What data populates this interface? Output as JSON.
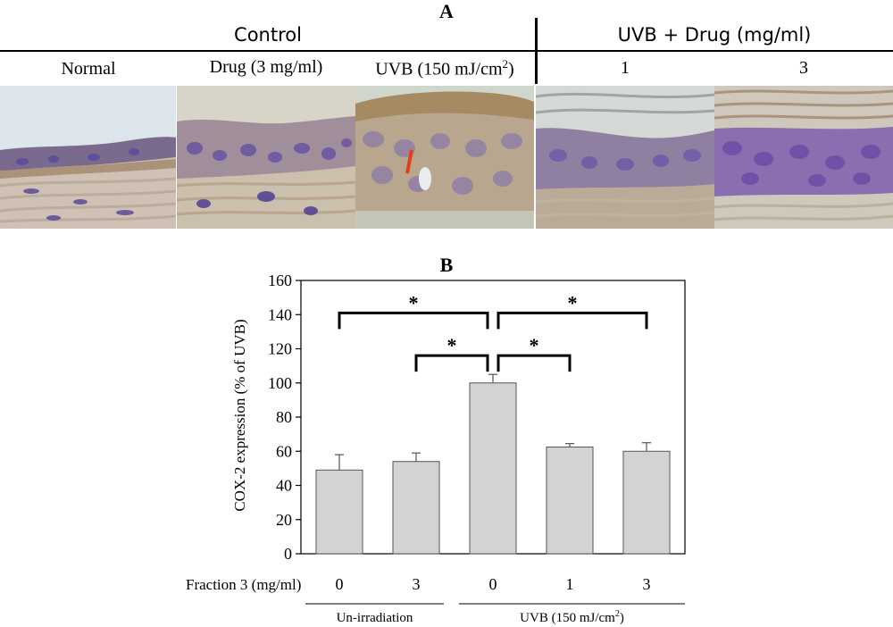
{
  "panel_a": {
    "label": "A",
    "groups": [
      {
        "label": "Control"
      },
      {
        "label": "UVB + Drug (mg/ml)"
      }
    ],
    "conditions": [
      {
        "label": "Normal"
      },
      {
        "label": "Drug (3 mg/ml)"
      },
      {
        "label_main": "UVB (150 mJ/cm",
        "label_sup": "2",
        "label_end": ")"
      },
      {
        "label": "1"
      },
      {
        "label": "3"
      }
    ],
    "stain_colors": {
      "background": "#dfe6ec",
      "tissue": "#c9b8a6",
      "nuclei": "#6f5aa8",
      "brown": "#8a6a3e",
      "arrow": "#e0401a"
    }
  },
  "chart_data": {
    "panel_label": "B",
    "type": "bar",
    "ylabel": "COX-2 expression (% of UVB)",
    "ylim": [
      0,
      160
    ],
    "yticks": [
      0,
      20,
      40,
      60,
      80,
      100,
      120,
      140,
      160
    ],
    "row_label": "Fraction 3 (mg/ml)",
    "categories": [
      "0",
      "3",
      "0",
      "1",
      "3"
    ],
    "values": [
      49,
      54,
      100,
      62.5,
      60
    ],
    "errors": [
      9,
      5,
      5,
      2,
      5
    ],
    "bar_color": "#d3d3d3",
    "groups": [
      {
        "label": "Un-irradiation",
        "indices": [
          0,
          1
        ]
      },
      {
        "label_main": "UVB (150 mJ/cm",
        "label_sup": "2",
        "label_end": ")",
        "indices": [
          2,
          3,
          4
        ]
      }
    ],
    "significance": [
      {
        "from": 0,
        "to": 2,
        "level": 1,
        "label": "*"
      },
      {
        "from": 2,
        "to": 4,
        "level": 1,
        "label": "*"
      },
      {
        "from": 1,
        "to": 2,
        "level": 0,
        "label": "*"
      },
      {
        "from": 2,
        "to": 3,
        "level": 0,
        "label": "*"
      }
    ]
  }
}
